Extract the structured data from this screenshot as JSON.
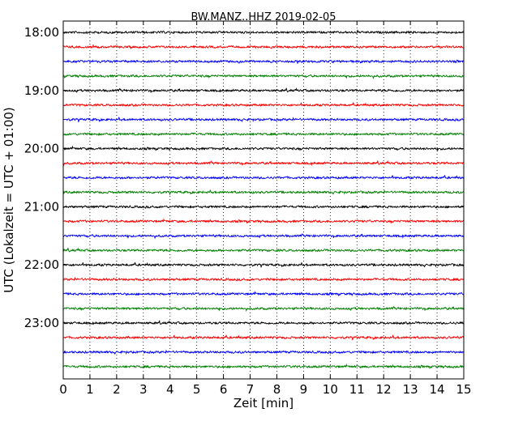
{
  "chart_data": {
    "type": "line",
    "title": "BW.MANZ..HHZ 2019-02-05",
    "xlabel": "Zeit  [min]",
    "ylabel": "UTC (Lokalzeit = UTC + 01:00)",
    "x_ticks": [
      0,
      1,
      2,
      3,
      4,
      5,
      6,
      7,
      8,
      9,
      10,
      11,
      12,
      13,
      14,
      15
    ],
    "xlim": [
      0,
      15
    ],
    "y_tick_labels": [
      "18:00",
      "19:00",
      "20:00",
      "21:00",
      "22:00",
      "23:00"
    ],
    "grid": "vertical dotted at each minute",
    "color_cycle": [
      "#000000",
      "#ff0000",
      "#0000ff",
      "#008000"
    ],
    "series": [
      {
        "start": "18:00",
        "color": "#000000"
      },
      {
        "start": "18:15",
        "color": "#ff0000"
      },
      {
        "start": "18:30",
        "color": "#0000ff"
      },
      {
        "start": "18:45",
        "color": "#008000"
      },
      {
        "start": "19:00",
        "color": "#000000"
      },
      {
        "start": "19:15",
        "color": "#ff0000"
      },
      {
        "start": "19:30",
        "color": "#0000ff"
      },
      {
        "start": "19:45",
        "color": "#008000"
      },
      {
        "start": "20:00",
        "color": "#000000"
      },
      {
        "start": "20:15",
        "color": "#ff0000"
      },
      {
        "start": "20:30",
        "color": "#0000ff"
      },
      {
        "start": "20:45",
        "color": "#008000"
      },
      {
        "start": "21:00",
        "color": "#000000"
      },
      {
        "start": "21:15",
        "color": "#ff0000"
      },
      {
        "start": "21:30",
        "color": "#0000ff"
      },
      {
        "start": "21:45",
        "color": "#008000"
      },
      {
        "start": "22:00",
        "color": "#000000"
      },
      {
        "start": "22:15",
        "color": "#ff0000"
      },
      {
        "start": "22:30",
        "color": "#0000ff"
      },
      {
        "start": "22:45",
        "color": "#008000"
      },
      {
        "start": "23:00",
        "color": "#000000"
      },
      {
        "start": "23:15",
        "color": "#ff0000"
      },
      {
        "start": "23:30",
        "color": "#0000ff"
      },
      {
        "start": "23:45",
        "color": "#008000"
      }
    ]
  }
}
